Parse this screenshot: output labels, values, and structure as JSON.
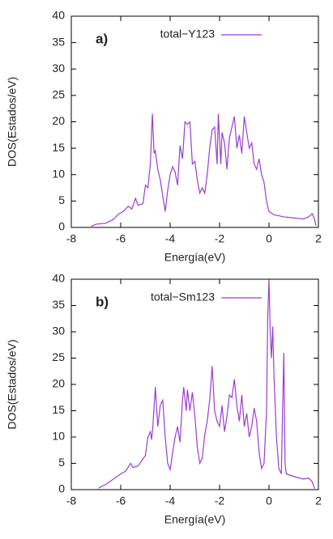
{
  "chart_data": [
    {
      "type": "line",
      "annotation": "a)",
      "xlabel": "Energía(eV)",
      "ylabel": "DOS(Estados/eV)",
      "xlim": [
        -8,
        2
      ],
      "xticks": [
        -8,
        -6,
        -4,
        -2,
        0,
        2
      ],
      "ylim": [
        0,
        40
      ],
      "yticks": [
        0,
        5,
        10,
        15,
        20,
        25,
        30,
        35,
        40
      ],
      "legend": "top-right",
      "x": [
        -7.2,
        -7.0,
        -6.6,
        -6.3,
        -6.1,
        -5.9,
        -5.7,
        -5.55,
        -5.4,
        -5.3,
        -5.1,
        -5.0,
        -4.9,
        -4.8,
        -4.72,
        -4.65,
        -4.6,
        -4.5,
        -4.4,
        -4.3,
        -4.2,
        -4.1,
        -4.0,
        -3.9,
        -3.8,
        -3.7,
        -3.6,
        -3.5,
        -3.4,
        -3.3,
        -3.2,
        -3.1,
        -3.0,
        -2.9,
        -2.8,
        -2.7,
        -2.6,
        -2.5,
        -2.4,
        -2.3,
        -2.2,
        -2.1,
        -2.05,
        -1.95,
        -1.9,
        -1.8,
        -1.7,
        -1.6,
        -1.5,
        -1.4,
        -1.3,
        -1.2,
        -1.1,
        -1.0,
        -0.9,
        -0.8,
        -0.7,
        -0.6,
        -0.5,
        -0.4,
        -0.3,
        -0.2,
        -0.1,
        0.0,
        0.2,
        0.6,
        1.0,
        1.4,
        1.6,
        1.75,
        1.85,
        1.9
      ],
      "series": [
        {
          "name": "total−Y123",
          "color": "#9a3fd0",
          "values": [
            0.2,
            0.6,
            0.8,
            1.5,
            2.5,
            3.0,
            4.0,
            3.5,
            5.5,
            4.2,
            4.5,
            8.0,
            7.5,
            12,
            21.5,
            14,
            14.5,
            11,
            9,
            6,
            3,
            7,
            10,
            11.5,
            10.5,
            8,
            15.5,
            13,
            20,
            19.5,
            20,
            12,
            12.5,
            9,
            6.5,
            7.5,
            6.5,
            10,
            15,
            18.5,
            19,
            12,
            21.5,
            12,
            18,
            16,
            11,
            17,
            19,
            21,
            15,
            17.5,
            14,
            21,
            18,
            15,
            16,
            12,
            11,
            13,
            10,
            8.5,
            5,
            3,
            2.4,
            2.0,
            1.8,
            1.6,
            2.0,
            2.6,
            1.5,
            0.3
          ]
        }
      ]
    },
    {
      "type": "line",
      "annotation": "b)",
      "xlabel": "Energía(eV)",
      "ylabel": "DOS(Estados/eV)",
      "xlim": [
        -8,
        2
      ],
      "xticks": [
        -8,
        -6,
        -4,
        -2,
        0,
        2
      ],
      "ylim": [
        0,
        40
      ],
      "yticks": [
        0,
        5,
        10,
        15,
        20,
        25,
        30,
        35,
        40
      ],
      "legend": "top-right",
      "x": [
        -6.9,
        -6.6,
        -6.3,
        -6.0,
        -5.8,
        -5.6,
        -5.5,
        -5.3,
        -5.0,
        -4.9,
        -4.8,
        -4.75,
        -4.7,
        -4.6,
        -4.5,
        -4.4,
        -4.3,
        -4.2,
        -4.1,
        -4.0,
        -3.9,
        -3.8,
        -3.7,
        -3.6,
        -3.5,
        -3.45,
        -3.35,
        -3.3,
        -3.2,
        -3.1,
        -3.0,
        -2.9,
        -2.8,
        -2.7,
        -2.6,
        -2.5,
        -2.4,
        -2.3,
        -2.2,
        -2.1,
        -2.0,
        -1.9,
        -1.8,
        -1.7,
        -1.6,
        -1.5,
        -1.4,
        -1.3,
        -1.2,
        -1.1,
        -1.0,
        -0.9,
        -0.8,
        -0.7,
        -0.6,
        -0.5,
        -0.4,
        -0.3,
        -0.2,
        -0.1,
        -0.05,
        0.0,
        0.05,
        0.1,
        0.15,
        0.2,
        0.3,
        0.4,
        0.5,
        0.55,
        0.6,
        0.65,
        0.7,
        1.0,
        1.4,
        1.6,
        1.75,
        1.85
      ],
      "series": [
        {
          "name": "total−Sm123",
          "color": "#9a3fd0",
          "values": [
            0.3,
            1.0,
            2.0,
            3.0,
            3.5,
            5.0,
            4.2,
            4.5,
            6.5,
            10,
            11,
            9.5,
            12,
            19.5,
            12,
            16,
            17,
            10,
            5,
            3.8,
            7,
            10,
            12,
            9,
            17,
            19.5,
            15,
            19,
            15,
            18.5,
            14,
            8,
            5,
            6,
            10.5,
            13,
            17,
            23.5,
            15,
            13,
            12,
            16,
            11,
            14,
            18,
            17.5,
            21,
            16,
            13,
            18,
            12,
            14.5,
            10,
            12,
            15.5,
            13,
            7,
            4,
            5,
            15,
            33,
            40,
            30,
            25,
            31,
            22,
            10,
            4,
            3,
            15,
            26,
            5,
            3,
            2.5,
            2.0,
            2.2,
            1.5,
            0.2
          ]
        }
      ]
    }
  ]
}
